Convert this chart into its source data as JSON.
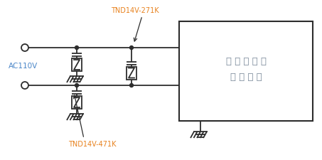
{
  "bg_color": "#ffffff",
  "line_color": "#2d2d2d",
  "label_color_ac": "#4a86c8",
  "label_color_tnd": "#e8821e",
  "box_text_color": "#7a8a9a",
  "ac_label": "AC110V",
  "tnd_top_label": "TND14V-271K",
  "tnd_bot_label": "TND14V-471K",
  "box_line1": "自 动 售 货 机",
  "box_line2": "控 制 回 路",
  "figsize": [
    4.53,
    2.25
  ],
  "dpi": 100
}
